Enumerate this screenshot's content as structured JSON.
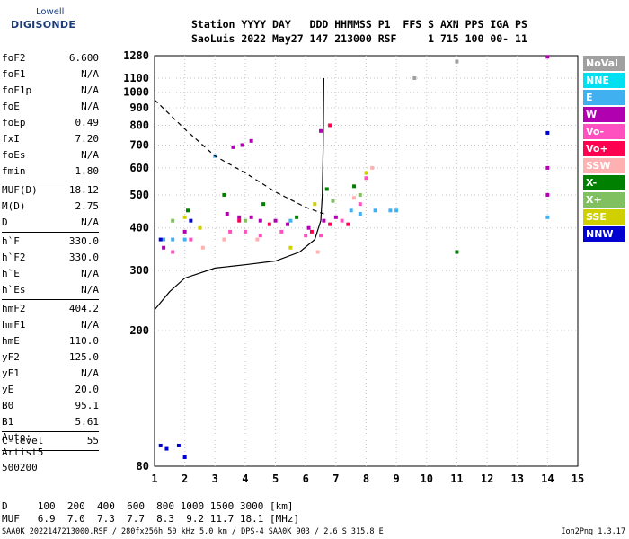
{
  "logo": {
    "top": "Lowell",
    "main": "DIGISONDE"
  },
  "header": {
    "line1": "Station YYYY DAY   DDD HHMMSS P1  FFS S AXN PPS IGA PS",
    "line2": "SaoLuis 2022 May27 147 213000 RSF     1 715 100 00- 11"
  },
  "params_group1": [
    {
      "label": "foF2",
      "value": "6.600"
    },
    {
      "label": "foF1",
      "value": "N/A"
    },
    {
      "label": "foF1p",
      "value": "N/A"
    },
    {
      "label": "foE",
      "value": "N/A"
    },
    {
      "label": "foEp",
      "value": "0.49"
    },
    {
      "label": "fxI",
      "value": "7.20"
    },
    {
      "label": "foEs",
      "value": "N/A"
    },
    {
      "label": "fmin",
      "value": "1.80"
    }
  ],
  "params_group2": [
    {
      "label": "MUF(D)",
      "value": "18.12"
    },
    {
      "label": "M(D)",
      "value": "2.75"
    },
    {
      "label": "D",
      "value": "N/A"
    }
  ],
  "params_group3": [
    {
      "label": "h`F",
      "value": "330.0"
    },
    {
      "label": "h`F2",
      "value": "330.0"
    },
    {
      "label": "h`E",
      "value": "N/A"
    },
    {
      "label": "h`Es",
      "value": "N/A"
    }
  ],
  "params_group4": [
    {
      "label": "hmF2",
      "value": "404.2"
    },
    {
      "label": "hmF1",
      "value": "N/A"
    },
    {
      "label": "hmE",
      "value": "110.0"
    },
    {
      "label": "yF2",
      "value": "125.0"
    },
    {
      "label": "yF1",
      "value": "N/A"
    },
    {
      "label": "yE",
      "value": "20.0"
    },
    {
      "label": "B0",
      "value": "95.1"
    },
    {
      "label": "B1",
      "value": "5.61"
    }
  ],
  "params_group5": [
    {
      "label": "C-level",
      "value": "55"
    }
  ],
  "notes": {
    "line1": "Auto:",
    "line2": "Artist5",
    "line3": "500200"
  },
  "muf_table": {
    "d_row": "D     100  200  400  600  800 1000 1500 3000 [km]",
    "muf_row": "MUF   6.9  7.0  7.3  7.7  8.3  9.2 11.7 18.1 [MHz]"
  },
  "footer": "SAA0K_2022147213000.RSF / 280fx256h 50 kHz 5.0 km / DPS-4 SAA0K 903 / 2.6 S 315.8 E",
  "version": "Ion2Png 1.3.17",
  "legend": [
    {
      "label": "NoVal",
      "color": "#a0a0a0"
    },
    {
      "label": "NNE",
      "color": "#00e0f0"
    },
    {
      "label": "E",
      "color": "#40b0f0"
    },
    {
      "label": "W",
      "color": "#b000b0"
    },
    {
      "label": "Vo-",
      "color": "#ff50c0"
    },
    {
      "label": "Vo+",
      "color": "#ff0050"
    },
    {
      "label": "SSW",
      "color": "#ffb0b0"
    },
    {
      "label": "X-",
      "color": "#008000"
    },
    {
      "label": "X+",
      "color": "#80c060"
    },
    {
      "label": "SSE",
      "color": "#d0d000"
    },
    {
      "label": "NNW",
      "color": "#0000d0"
    }
  ],
  "chart_data": {
    "type": "scatter",
    "xlabel": "",
    "ylabel": "",
    "xlim": [
      1,
      15
    ],
    "x_ticks": [
      "1",
      "2",
      "3",
      "4",
      "5",
      "6",
      "7",
      "8",
      "9",
      "10",
      "11",
      "12",
      "13",
      "14",
      "15"
    ],
    "y_scale": "log",
    "ylim": [
      80,
      1280
    ],
    "y_ticks": [
      "80",
      "200",
      "300",
      "400",
      "500",
      "600",
      "700",
      "800",
      "900",
      "1000",
      "1100",
      "1280"
    ],
    "grid": true,
    "series": [
      {
        "name": "NoVal",
        "points": [
          [
            11,
            1230
          ],
          [
            9.6,
            1100
          ]
        ]
      },
      {
        "name": "E",
        "points": [
          [
            1.3,
            370
          ],
          [
            1.6,
            370
          ],
          [
            2.0,
            370
          ],
          [
            3.0,
            650
          ],
          [
            5.5,
            420
          ],
          [
            7.5,
            450
          ],
          [
            7.8,
            440
          ],
          [
            8.3,
            450
          ],
          [
            8.8,
            450
          ],
          [
            9.0,
            450
          ],
          [
            14,
            430
          ]
        ]
      },
      {
        "name": "W",
        "points": [
          [
            1.3,
            350
          ],
          [
            2.0,
            390
          ],
          [
            3.4,
            440
          ],
          [
            3.8,
            430
          ],
          [
            4.2,
            430
          ],
          [
            4.5,
            420
          ],
          [
            5.0,
            420
          ],
          [
            5.4,
            410
          ],
          [
            6.1,
            400
          ],
          [
            6.6,
            420
          ],
          [
            7.0,
            430
          ],
          [
            3.6,
            690
          ],
          [
            3.9,
            700
          ],
          [
            4.2,
            720
          ],
          [
            6.5,
            770
          ],
          [
            14,
            1270
          ],
          [
            14,
            600
          ],
          [
            14,
            500
          ]
        ]
      },
      {
        "name": "Vo-",
        "points": [
          [
            1.6,
            340
          ],
          [
            2.2,
            370
          ],
          [
            3.5,
            390
          ],
          [
            4.0,
            390
          ],
          [
            4.5,
            380
          ],
          [
            5.2,
            390
          ],
          [
            6.0,
            380
          ],
          [
            6.5,
            380
          ],
          [
            7.2,
            420
          ],
          [
            7.8,
            470
          ],
          [
            8.0,
            560
          ]
        ]
      },
      {
        "name": "Vo+",
        "points": [
          [
            3.8,
            420
          ],
          [
            4.8,
            410
          ],
          [
            6.2,
            390
          ],
          [
            6.8,
            410
          ],
          [
            7.4,
            410
          ],
          [
            6.8,
            800
          ]
        ]
      },
      {
        "name": "SSW",
        "points": [
          [
            2.6,
            350
          ],
          [
            3.3,
            370
          ],
          [
            4.4,
            370
          ],
          [
            6.4,
            340
          ],
          [
            7.6,
            490
          ],
          [
            8.2,
            600
          ]
        ]
      },
      {
        "name": "X-",
        "points": [
          [
            2.1,
            450
          ],
          [
            3.3,
            500
          ],
          [
            4.6,
            470
          ],
          [
            5.7,
            430
          ],
          [
            6.7,
            520
          ],
          [
            7.6,
            530
          ],
          [
            11,
            340
          ]
        ]
      },
      {
        "name": "X+",
        "points": [
          [
            1.6,
            420
          ],
          [
            4.0,
            420
          ],
          [
            6.9,
            480
          ],
          [
            7.8,
            500
          ]
        ]
      },
      {
        "name": "SSE",
        "points": [
          [
            2.0,
            430
          ],
          [
            2.5,
            400
          ],
          [
            5.5,
            350
          ],
          [
            6.3,
            470
          ],
          [
            8.0,
            580
          ]
        ]
      },
      {
        "name": "NNW",
        "points": [
          [
            1.2,
            92
          ],
          [
            1.4,
            90
          ],
          [
            1.8,
            92
          ],
          [
            2.0,
            85
          ],
          [
            2.2,
            420
          ],
          [
            1.2,
            370
          ],
          [
            14,
            760
          ]
        ]
      }
    ],
    "curves": [
      {
        "name": "solid",
        "points": [
          [
            1,
            230
          ],
          [
            1.5,
            260
          ],
          [
            2,
            285
          ],
          [
            3,
            305
          ],
          [
            4,
            312
          ],
          [
            5,
            320
          ],
          [
            5.8,
            340
          ],
          [
            6.3,
            370
          ],
          [
            6.5,
            420
          ],
          [
            6.55,
            500
          ],
          [
            6.58,
            700
          ],
          [
            6.6,
            1100
          ]
        ]
      },
      {
        "name": "dashed",
        "points": [
          [
            1,
            950
          ],
          [
            2,
            780
          ],
          [
            3,
            650
          ],
          [
            4,
            580
          ],
          [
            5,
            510
          ],
          [
            6,
            460
          ],
          [
            6.6,
            440
          ]
        ]
      }
    ]
  }
}
